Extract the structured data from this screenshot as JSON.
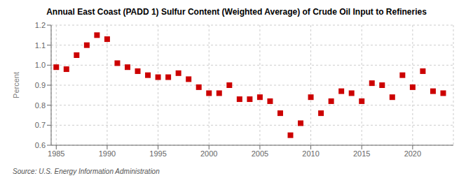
{
  "chart_data": {
    "type": "scatter",
    "title": "Annual East Coast (PADD 1) Sulfur Content (Weighted Average) of Crude Oil Input to Refineries",
    "ylabel": "Percent",
    "annotation": "Source: U.S. Energy Information Administration",
    "x": [
      1985,
      1986,
      1987,
      1988,
      1989,
      1990,
      1991,
      1992,
      1993,
      1994,
      1995,
      1996,
      1997,
      1998,
      1999,
      2000,
      2001,
      2002,
      2003,
      2004,
      2005,
      2006,
      2007,
      2008,
      2009,
      2010,
      2011,
      2012,
      2013,
      2014,
      2015,
      2016,
      2017,
      2018,
      2019,
      2020,
      2021,
      2022,
      2023
    ],
    "values": [
      0.99,
      0.98,
      1.05,
      1.1,
      1.15,
      1.13,
      1.01,
      0.99,
      0.97,
      0.95,
      0.94,
      0.94,
      0.96,
      0.93,
      0.89,
      0.86,
      0.86,
      0.9,
      0.83,
      0.83,
      0.84,
      0.82,
      0.76,
      0.65,
      0.71,
      0.84,
      0.76,
      0.82,
      0.87,
      0.86,
      0.82,
      0.91,
      0.9,
      0.84,
      0.95,
      0.89,
      0.97,
      0.87,
      0.86
    ],
    "color": "#cc0000",
    "marker": "square",
    "xlim": [
      1984.5,
      2024
    ],
    "xticks": [
      1985,
      1990,
      1995,
      2000,
      2005,
      2010,
      2015,
      2020
    ],
    "ylim": [
      0.6,
      1.2
    ],
    "yticks": [
      0.6,
      0.7,
      0.8,
      0.9,
      {
        "value": 1.0,
        "label": "1.0"
      },
      1.1,
      1.2
    ],
    "grid": true
  }
}
